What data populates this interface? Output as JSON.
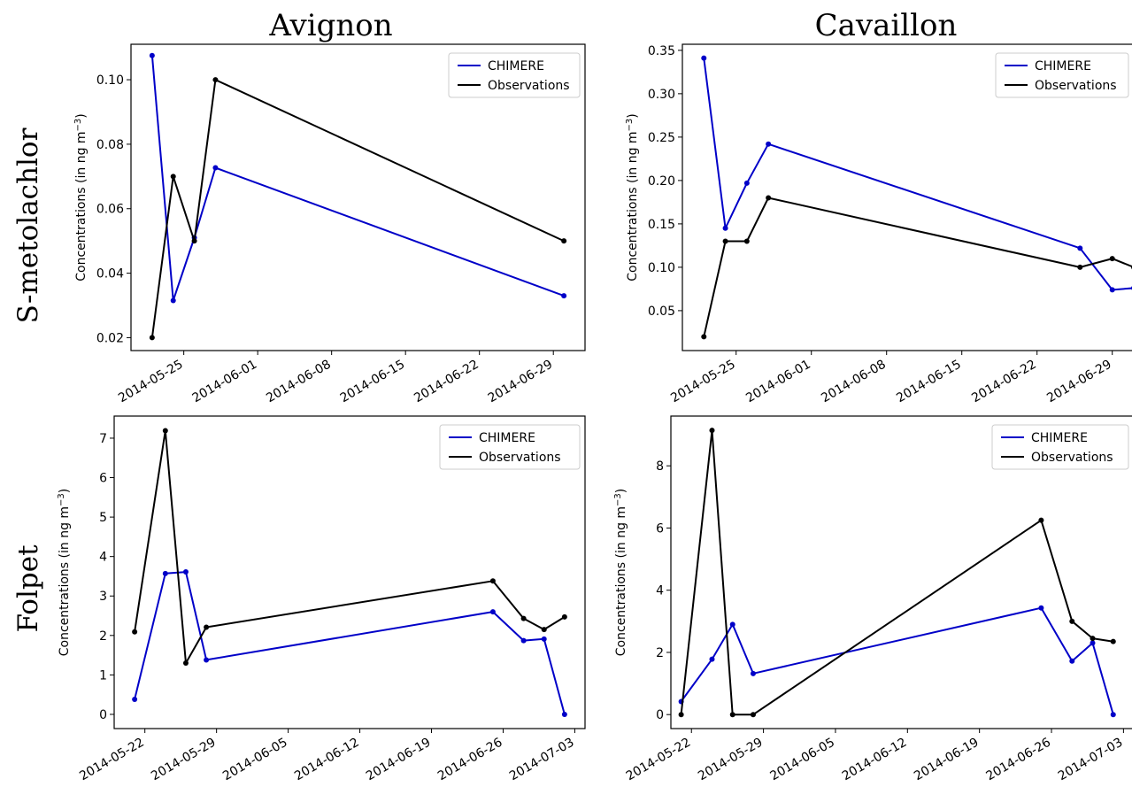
{
  "figure": {
    "columns": [
      "Avignon",
      "Cavaillon"
    ],
    "rows": [
      "S-metolachlor",
      "Folpet"
    ]
  },
  "colors": {
    "CHIMERE": "#0000c8",
    "Observations": "#000000"
  },
  "chart_data": [
    {
      "type": "line",
      "row_label": "S-metolachlor",
      "column_label": "Avignon",
      "ylabel_main": "Concentrations (in ng m",
      "ylabel_sup": "−3",
      "ylabel_close": ")",
      "legend": [
        "CHIMERE",
        "Observations"
      ],
      "legend_position": "top-right",
      "grid": false,
      "xlim": [
        "2014-05-20",
        "2014-07-02"
      ],
      "ylim": [
        0.016,
        0.111
      ],
      "x_ticks": [
        "2014-05-25",
        "2014-06-01",
        "2014-06-08",
        "2014-06-15",
        "2014-06-22",
        "2014-06-29"
      ],
      "y_ticks": [
        0.02,
        0.04,
        0.06,
        0.08,
        0.1
      ],
      "y_tick_labels": [
        "0.02",
        "0.04",
        "0.06",
        "0.08",
        "0.10"
      ],
      "series": [
        {
          "name": "CHIMERE",
          "x": [
            "2014-05-22",
            "2014-05-24",
            "2014-05-26",
            "2014-05-28",
            "2014-06-30"
          ],
          "y": [
            0.1075,
            0.0315,
            0.051,
            0.0727,
            0.033
          ]
        },
        {
          "name": "Observations",
          "x": [
            "2014-05-22",
            "2014-05-24",
            "2014-05-26",
            "2014-05-28",
            "2014-06-30"
          ],
          "y": [
            0.02,
            0.07,
            0.05,
            0.1,
            0.05
          ]
        }
      ]
    },
    {
      "type": "line",
      "row_label": "S-metolachlor",
      "column_label": "Cavaillon",
      "ylabel_main": "Concentrations (in ng m",
      "ylabel_sup": "−3",
      "ylabel_close": ")",
      "legend": [
        "CHIMERE",
        "Observations"
      ],
      "legend_position": "top-right",
      "grid": false,
      "xlim": [
        "2014-05-20",
        "2014-07-01"
      ],
      "ylim": [
        0.004,
        0.357
      ],
      "x_ticks": [
        "2014-05-25",
        "2014-06-01",
        "2014-06-08",
        "2014-06-15",
        "2014-06-22",
        "2014-06-29"
      ],
      "y_ticks": [
        0.05,
        0.1,
        0.15,
        0.2,
        0.25,
        0.3,
        0.35
      ],
      "y_tick_labels": [
        "0.05",
        "0.10",
        "0.15",
        "0.20",
        "0.25",
        "0.30",
        "0.35"
      ],
      "series": [
        {
          "name": "CHIMERE",
          "x": [
            "2014-05-22",
            "2014-05-24",
            "2014-05-26",
            "2014-05-28",
            "2014-06-26",
            "2014-06-29",
            "2014-07-01"
          ],
          "y": [
            0.341,
            0.145,
            0.197,
            0.242,
            0.122,
            0.074,
            0.076
          ]
        },
        {
          "name": "Observations",
          "x": [
            "2014-05-22",
            "2014-05-24",
            "2014-05-26",
            "2014-05-28",
            "2014-06-26",
            "2014-06-29",
            "2014-07-01"
          ],
          "y": [
            0.02,
            0.13,
            0.13,
            0.18,
            0.1,
            0.11,
            0.1
          ]
        }
      ]
    },
    {
      "type": "line",
      "row_label": "Folpet",
      "column_label": "Avignon",
      "ylabel_main": "Concentrations (in ng m",
      "ylabel_sup": "−3",
      "ylabel_close": ")",
      "legend": [
        "CHIMERE",
        "Observations"
      ],
      "legend_position": "top-right",
      "grid": false,
      "xlim": [
        "2014-05-19",
        "2014-07-04"
      ],
      "ylim": [
        -0.36,
        7.56
      ],
      "x_ticks": [
        "2014-05-22",
        "2014-05-29",
        "2014-06-05",
        "2014-06-12",
        "2014-06-19",
        "2014-06-26",
        "2014-07-03"
      ],
      "y_ticks": [
        0,
        1,
        2,
        3,
        4,
        5,
        6,
        7
      ],
      "y_tick_labels": [
        "0",
        "1",
        "2",
        "3",
        "4",
        "5",
        "6",
        "7"
      ],
      "series": [
        {
          "name": "CHIMERE",
          "x": [
            "2014-05-21",
            "2014-05-24",
            "2014-05-26",
            "2014-05-28",
            "2014-06-25",
            "2014-06-28",
            "2014-06-30",
            "2014-07-02"
          ],
          "y": [
            0.38,
            3.57,
            3.61,
            1.38,
            2.6,
            1.87,
            1.91,
            0.0
          ]
        },
        {
          "name": "Observations",
          "x": [
            "2014-05-21",
            "2014-05-24",
            "2014-05-26",
            "2014-05-28",
            "2014-06-25",
            "2014-06-28",
            "2014-06-30",
            "2014-07-02"
          ],
          "y": [
            2.09,
            7.19,
            1.3,
            2.21,
            3.38,
            2.43,
            2.15,
            2.47
          ]
        }
      ]
    },
    {
      "type": "line",
      "row_label": "Folpet",
      "column_label": "Cavaillon",
      "ylabel_main": "Concentrations (in ng m",
      "ylabel_sup": "−3",
      "ylabel_close": ")",
      "legend": [
        "CHIMERE",
        "Observations"
      ],
      "legend_position": "top-right",
      "grid": false,
      "xlim": [
        "2014-05-20",
        "2014-07-04"
      ],
      "ylim": [
        -0.45,
        9.6
      ],
      "x_ticks": [
        "2014-05-22",
        "2014-05-29",
        "2014-06-05",
        "2014-06-12",
        "2014-06-19",
        "2014-06-26",
        "2014-07-03"
      ],
      "y_ticks": [
        0,
        2,
        4,
        6,
        8
      ],
      "y_tick_labels": [
        "0",
        "2",
        "4",
        "6",
        "8"
      ],
      "series": [
        {
          "name": "CHIMERE",
          "x": [
            "2014-05-21",
            "2014-05-24",
            "2014-05-26",
            "2014-05-28",
            "2014-06-25",
            "2014-06-28",
            "2014-06-30",
            "2014-07-02"
          ],
          "y": [
            0.42,
            1.78,
            2.9,
            1.32,
            3.43,
            1.72,
            2.3,
            0.0
          ]
        },
        {
          "name": "Observations",
          "x": [
            "2014-05-21",
            "2014-05-24",
            "2014-05-26",
            "2014-05-28",
            "2014-06-25",
            "2014-06-28",
            "2014-06-30",
            "2014-07-02"
          ],
          "y": [
            0.0,
            9.14,
            0.0,
            0.0,
            6.25,
            3.0,
            2.45,
            2.35
          ]
        }
      ]
    }
  ]
}
